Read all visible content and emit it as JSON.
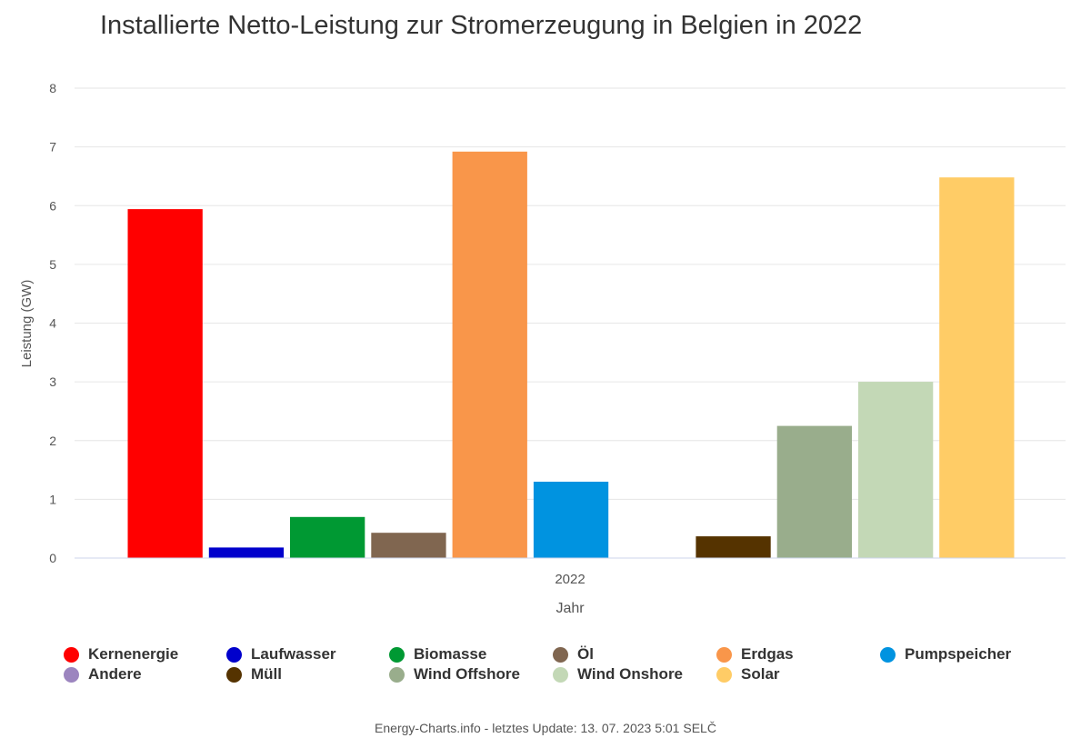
{
  "chart_data": {
    "type": "bar",
    "title": "Installierte Netto-Leistung zur Stromerzeugung in Belgien in 2022",
    "xlabel": "Jahr",
    "ylabel": "Leistung (GW)",
    "categories": [
      "2022"
    ],
    "ylim": [
      0,
      8
    ],
    "yticks": [
      "0",
      "1",
      "2",
      "3",
      "4",
      "5",
      "6",
      "7",
      "8"
    ],
    "grid": true,
    "legend_position": "bottom",
    "series": [
      {
        "name": "Kernenergie",
        "color": "#ff0000",
        "values": [
          5.94
        ]
      },
      {
        "name": "Laufwasser",
        "color": "#0000cc",
        "values": [
          0.18
        ]
      },
      {
        "name": "Biomasse",
        "color": "#009933",
        "values": [
          0.7
        ]
      },
      {
        "name": "Öl",
        "color": "#806650",
        "values": [
          0.43
        ]
      },
      {
        "name": "Erdgas",
        "color": "#f9964a",
        "values": [
          6.92
        ]
      },
      {
        "name": "Pumpspeicher",
        "color": "#0093e0",
        "values": [
          1.3
        ]
      },
      {
        "name": "Andere",
        "color": "#9c85bf",
        "values": [
          0
        ]
      },
      {
        "name": "Müll",
        "color": "#553300",
        "values": [
          0.37
        ]
      },
      {
        "name": "Wind Offshore",
        "color": "#99ad8c",
        "values": [
          2.25
        ]
      },
      {
        "name": "Wind Onshore",
        "color": "#c3d8b6",
        "values": [
          3.0
        ]
      },
      {
        "name": "Solar",
        "color": "#ffcc66",
        "values": [
          6.48
        ]
      }
    ]
  },
  "credits": "Energy-Charts.info - letztes Update: 13. 07. 2023 5:01 SELČ"
}
